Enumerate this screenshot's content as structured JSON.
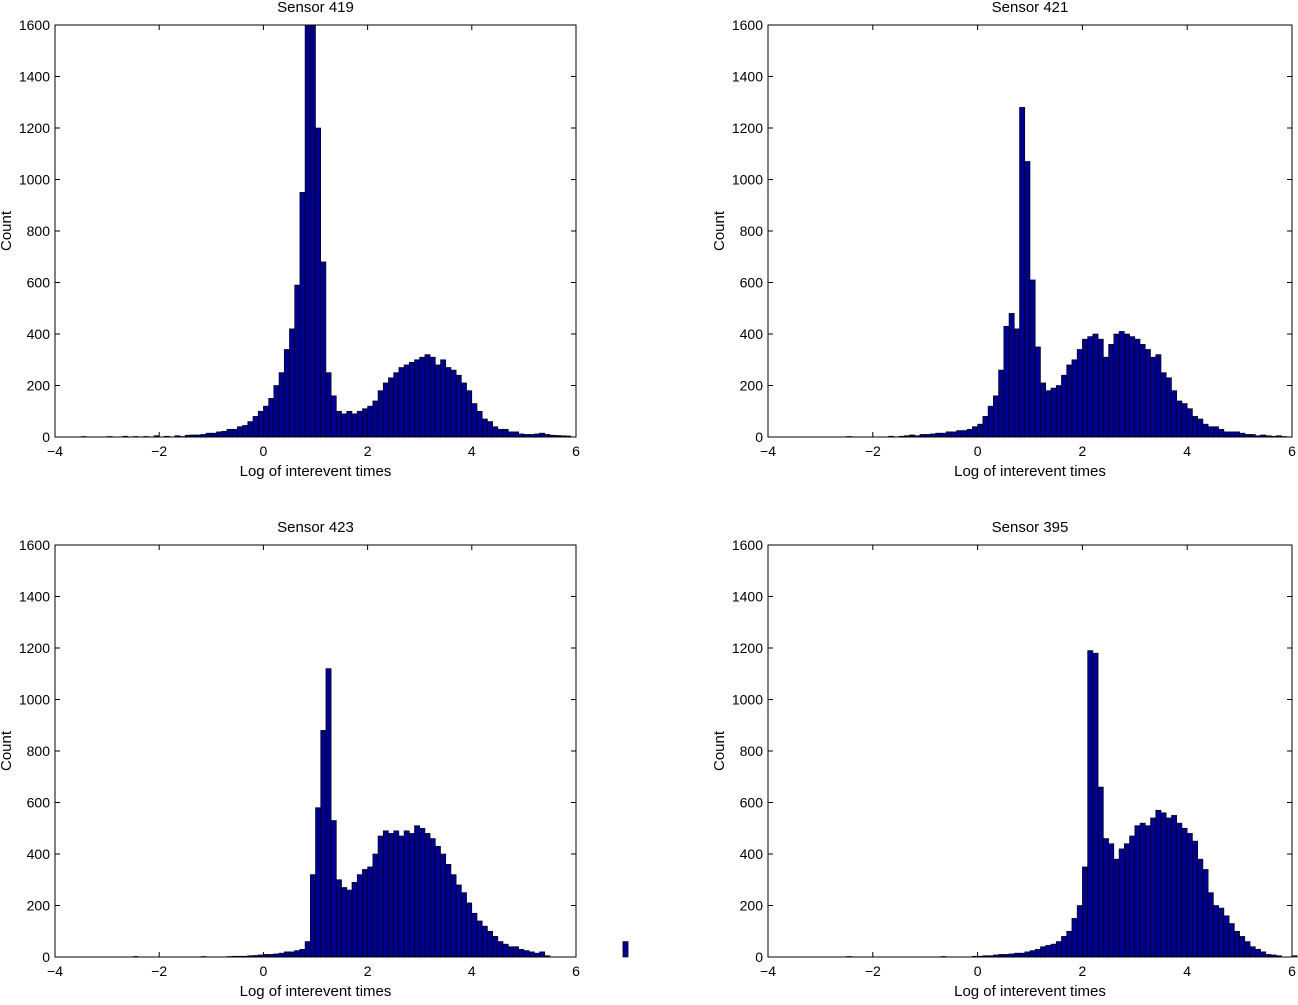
{
  "colors": {
    "bar_fill": "#00008f",
    "bar_edge": "#000000",
    "axes": "#000000",
    "background": "#ffffff"
  },
  "chart_data": [
    {
      "type": "bar",
      "title": "Sensor 419",
      "xlabel": "Log of interevent times",
      "ylabel": "Count",
      "xlim": [
        -4,
        6
      ],
      "ylim": [
        0,
        1600
      ],
      "xticks": [
        -4,
        -2,
        0,
        2,
        4,
        6
      ],
      "yticks": [
        0,
        200,
        400,
        600,
        800,
        1000,
        1200,
        1400,
        1600
      ],
      "grid": false,
      "bin_start": -3.5,
      "bin_width": 0.1,
      "values": [
        2,
        0,
        0,
        0,
        0,
        2,
        0,
        0,
        3,
        0,
        2,
        0,
        2,
        0,
        5,
        0,
        3,
        0,
        5,
        2,
        7,
        8,
        8,
        10,
        15,
        15,
        20,
        22,
        30,
        30,
        40,
        45,
        60,
        80,
        100,
        120,
        150,
        200,
        250,
        340,
        420,
        590,
        950,
        1600,
        1600,
        1200,
        680,
        250,
        160,
        100,
        90,
        100,
        90,
        100,
        110,
        120,
        140,
        180,
        210,
        230,
        250,
        270,
        280,
        290,
        300,
        310,
        320,
        310,
        280,
        300,
        270,
        260,
        240,
        210,
        180,
        130,
        100,
        70,
        60,
        40,
        30,
        30,
        20,
        20,
        12,
        10,
        10,
        12,
        15,
        10,
        7,
        6,
        5,
        4,
        0,
        0,
        0,
        0,
        0,
        0
      ]
    },
    {
      "type": "bar",
      "title": "Sensor 421",
      "xlabel": "Log of interevent times",
      "ylabel": "Count",
      "xlim": [
        -4,
        6
      ],
      "ylim": [
        0,
        1600
      ],
      "xticks": [
        -4,
        -2,
        0,
        2,
        4,
        6
      ],
      "yticks": [
        0,
        200,
        400,
        600,
        800,
        1000,
        1200,
        1400,
        1600
      ],
      "grid": false,
      "bin_start": -2.5,
      "bin_width": 0.1,
      "values": [
        2,
        0,
        0,
        0,
        0,
        0,
        0,
        0,
        3,
        0,
        3,
        5,
        8,
        5,
        10,
        10,
        12,
        15,
        15,
        20,
        20,
        25,
        25,
        30,
        40,
        50,
        80,
        120,
        160,
        260,
        430,
        480,
        420,
        1280,
        1070,
        610,
        350,
        210,
        180,
        190,
        200,
        240,
        280,
        300,
        340,
        380,
        390,
        400,
        380,
        310,
        360,
        400,
        410,
        400,
        390,
        380,
        360,
        340,
        310,
        320,
        250,
        230,
        180,
        140,
        130,
        110,
        80,
        70,
        50,
        40,
        40,
        30,
        20,
        20,
        20,
        15,
        10,
        10,
        5,
        8,
        5,
        3,
        5,
        2,
        0,
        0,
        0,
        0,
        0,
        0,
        0,
        0,
        0,
        0,
        0,
        0,
        0,
        0,
        0,
        0
      ]
    },
    {
      "type": "bar",
      "title": "Sensor 423",
      "xlabel": "Log of interevent times",
      "ylabel": "Count",
      "xlim": [
        -4,
        6
      ],
      "ylim": [
        0,
        1600
      ],
      "xticks": [
        -4,
        -2,
        0,
        2,
        4,
        6
      ],
      "yticks": [
        0,
        200,
        400,
        600,
        800,
        1000,
        1200,
        1400,
        1600
      ],
      "grid": false,
      "bin_start": -2.5,
      "bin_width": 0.1,
      "values": [
        2,
        0,
        0,
        0,
        0,
        0,
        0,
        0,
        0,
        0,
        0,
        0,
        0,
        2,
        0,
        0,
        0,
        0,
        2,
        3,
        3,
        3,
        5,
        6,
        8,
        10,
        10,
        12,
        15,
        20,
        20,
        25,
        30,
        60,
        320,
        580,
        880,
        1120,
        530,
        300,
        270,
        260,
        290,
        320,
        340,
        350,
        400,
        470,
        490,
        480,
        490,
        470,
        490,
        480,
        510,
        500,
        480,
        460,
        430,
        400,
        360,
        320,
        280,
        250,
        210,
        170,
        140,
        120,
        100,
        80,
        60,
        50,
        40,
        40,
        30,
        25,
        20,
        15,
        20,
        5,
        0,
        0,
        0,
        0,
        0,
        0,
        0,
        0,
        0,
        0,
        0,
        0,
        0,
        0,
        60,
        0,
        0,
        0,
        0,
        0
      ]
    },
    {
      "type": "bar",
      "title": "Sensor 395",
      "xlabel": "Log of interevent times",
      "ylabel": "Count",
      "xlim": [
        -4,
        6
      ],
      "ylim": [
        0,
        1600
      ],
      "xticks": [
        -4,
        -2,
        0,
        2,
        4,
        6
      ],
      "yticks": [
        0,
        200,
        400,
        600,
        800,
        1000,
        1200,
        1400,
        1600
      ],
      "grid": false,
      "bin_start": -2.5,
      "bin_width": 0.1,
      "values": [
        2,
        0,
        0,
        0,
        0,
        0,
        0,
        0,
        0,
        0,
        0,
        0,
        0,
        0,
        0,
        0,
        0,
        0,
        2,
        0,
        0,
        0,
        0,
        0,
        3,
        3,
        5,
        5,
        8,
        10,
        10,
        12,
        15,
        15,
        20,
        25,
        30,
        40,
        45,
        50,
        60,
        80,
        100,
        150,
        200,
        350,
        1190,
        1180,
        660,
        460,
        440,
        380,
        420,
        440,
        470,
        510,
        520,
        510,
        540,
        570,
        560,
        540,
        550,
        520,
        500,
        480,
        450,
        380,
        340,
        250,
        200,
        190,
        160,
        130,
        100,
        80,
        60,
        40,
        30,
        20,
        10,
        8,
        5,
        0,
        0,
        5,
        0,
        0,
        0,
        0,
        0,
        0,
        0,
        0,
        0,
        0,
        0,
        0,
        0,
        0
      ]
    }
  ]
}
